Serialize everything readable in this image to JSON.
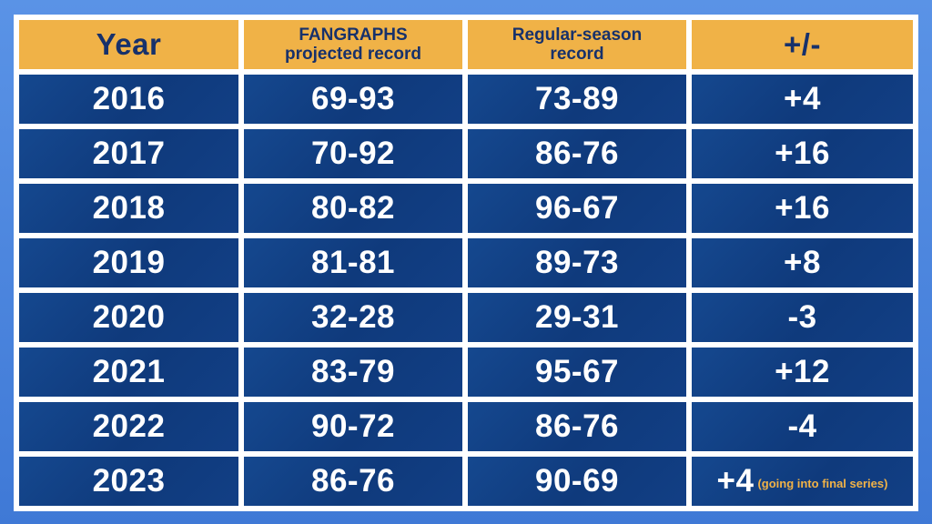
{
  "chart_data": {
    "type": "table",
    "columns": [
      "Year",
      "FANGRAPHS\nprojected record",
      "Regular-season\nrecord",
      "+/-"
    ],
    "rows": [
      {
        "year": "2016",
        "projected": "69-93",
        "actual": "73-89",
        "diff": "+4",
        "note": ""
      },
      {
        "year": "2017",
        "projected": "70-92",
        "actual": "86-76",
        "diff": "+16",
        "note": ""
      },
      {
        "year": "2018",
        "projected": "80-82",
        "actual": "96-67",
        "diff": "+16",
        "note": ""
      },
      {
        "year": "2019",
        "projected": "81-81",
        "actual": "89-73",
        "diff": "+8",
        "note": ""
      },
      {
        "year": "2020",
        "projected": "32-28",
        "actual": "29-31",
        "diff": "-3",
        "note": ""
      },
      {
        "year": "2021",
        "projected": "83-79",
        "actual": "95-67",
        "diff": "+12",
        "note": ""
      },
      {
        "year": "2022",
        "projected": "90-72",
        "actual": "86-76",
        "diff": "-4",
        "note": ""
      },
      {
        "year": "2023",
        "projected": "86-76",
        "actual": "90-69",
        "diff": "+4",
        "note": "(going into final series)"
      }
    ]
  },
  "header": {
    "year": "Year",
    "projected_line1": "FANGRAPHS",
    "projected_line2": "projected record",
    "actual_line1": "Regular-season",
    "actual_line2": "record",
    "diff": "+/-"
  },
  "colors": {
    "header_bg": "#f0b247",
    "header_text": "#17316b",
    "cell_bg": "#12428a",
    "cell_text": "#ffffff",
    "frame": "#4a86dd",
    "note_text": "#f0b247"
  }
}
